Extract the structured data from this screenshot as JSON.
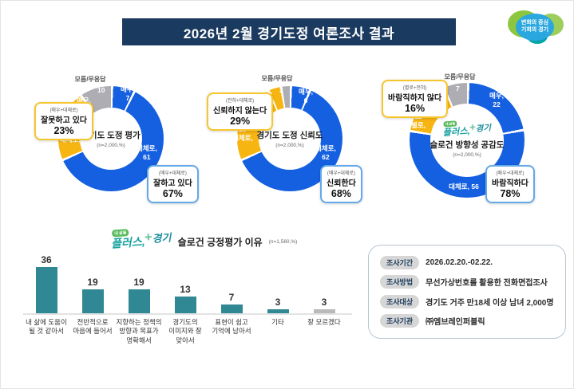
{
  "header": {
    "title": "2026년 2월 경기도정 여론조사 결과"
  },
  "brand_logo": {
    "line1": "변화의 중심",
    "line2": "기회의 경기"
  },
  "plus_logo": {
    "badge": "내 삶을",
    "word1": "플러스,",
    "word2": "경기",
    "mark": "✚"
  },
  "colors": {
    "blue": "#1560e0",
    "yellow": "#f7b512",
    "gray": "#adadb3",
    "teal": "#2f8893",
    "bar_gray": "#b9b9b9",
    "navy": "#1b3a5f"
  },
  "chart_data": [
    {
      "type": "donut",
      "title": "경기도 도정 평가",
      "subtitle": "(n=2,000,%)",
      "segments": [
        {
          "label": "매우,",
          "value": 7,
          "color": "blue"
        },
        {
          "label": "대체로,",
          "value": 61,
          "color": "blue"
        },
        {
          "label": "대체로,",
          "value": 18,
          "color": "yellow"
        },
        {
          "label": "매우,",
          "value": 4,
          "color": "yellow"
        },
        {
          "label": "모름/무응답",
          "value": 10,
          "color": "gray"
        }
      ],
      "callouts": {
        "negative": {
          "note": "(매우+대체로)",
          "label": "잘못하고 있다",
          "pct": "23%"
        },
        "positive": {
          "note": "(매우+대체로)",
          "label": "잘하고 있다",
          "pct": "67%"
        }
      }
    },
    {
      "type": "donut",
      "title": "경기도 도정 신뢰도",
      "subtitle": "(n=2,000,%)",
      "segments": [
        {
          "label": "매우,",
          "value": 6,
          "color": "blue"
        },
        {
          "label": "대체로,",
          "value": 62,
          "color": "blue"
        },
        {
          "label": "대체로,",
          "value": 25,
          "color": "yellow"
        },
        {
          "label": "전혀,",
          "value": 4,
          "color": "yellow"
        },
        {
          "label": "모름/무응답",
          "value": 3,
          "color": "gray"
        }
      ],
      "callouts": {
        "negative": {
          "note": "(전혀+대체로)",
          "label": "신뢰하지 않는다",
          "pct": "29%"
        },
        "positive": {
          "note": "(매우+대체로)",
          "label": "신뢰한다",
          "pct": "68%"
        }
      }
    },
    {
      "type": "donut",
      "title": "슬로건 방향성 공감도",
      "subtitle": "(n=2,000,%)",
      "segments": [
        {
          "label": "매우,",
          "value": 22,
          "color": "blue"
        },
        {
          "label": "대체로,",
          "value": 56,
          "color": "blue"
        },
        {
          "label": "별로,",
          "value": 12,
          "color": "yellow"
        },
        {
          "label": "전혀,",
          "value": 4,
          "color": "yellow"
        },
        {
          "label": "모름/무응답",
          "value": 7,
          "color": "gray"
        }
      ],
      "callouts": {
        "negative": {
          "note": "(별로+전혀)",
          "label": "바람직하지 않다",
          "pct": "16%"
        },
        "positive": {
          "note": "(매우+대체로)",
          "label": "바람직하다",
          "pct": "78%"
        }
      }
    },
    {
      "type": "bar",
      "title": "슬로건 긍정평가 이유",
      "subtitle": "(n=1,560,%)",
      "categories": [
        "내 삶에 도움이\n될 것 같아서",
        "전반적으로\n마음에 들어서",
        "지향하는 정책의\n방향과 목표가\n명확해서",
        "경기도의\n이미지와 잘\n맞아서",
        "표현이 쉽고\n기억에 남아서",
        "기타",
        "잘 모르겠다"
      ],
      "values": [
        36,
        19,
        19,
        13,
        7,
        3,
        3
      ],
      "bar_colors": [
        "teal",
        "teal",
        "teal",
        "teal",
        "teal",
        "teal",
        "bar_gray"
      ],
      "ylim": [
        0,
        40
      ]
    }
  ],
  "survey_info": {
    "rows": [
      {
        "label": "조사기간",
        "value": "2026.02.20.-02.22."
      },
      {
        "label": "조사방법",
        "value": "무선가상번호를 활용한 전화면접조사"
      },
      {
        "label": "조사대상",
        "value": "경기도 거주 만18세 이상 남녀 2,000명"
      },
      {
        "label": "조사기관",
        "value": "㈜엠브레인퍼블릭"
      }
    ]
  }
}
